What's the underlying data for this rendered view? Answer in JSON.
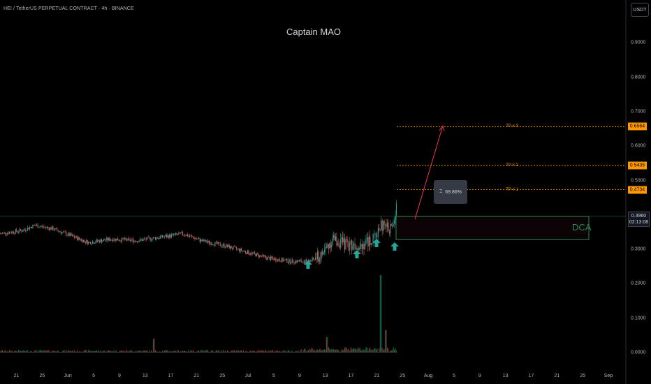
{
  "header": {
    "symbol": "HEI / TetherUS PERPETUAL CONTRACT · 4h · BINANCE",
    "author": "Captain MAO",
    "currency": "USDT"
  },
  "chart_data": {
    "type": "candlestick",
    "symbol": "HEI/USDT",
    "interval": "4h",
    "y_axis": {
      "ticks": [
        "0.9000",
        "0.8000",
        "0.7000",
        "0.6000",
        "0.5000",
        "0.4000",
        "0.3000",
        "0.2000",
        "0.1000",
        "0.0000"
      ],
      "ylim": [
        0,
        0.9
      ]
    },
    "x_axis": {
      "ticks": [
        "21",
        "25",
        "Jun",
        "5",
        "9",
        "13",
        "17",
        "21",
        "25",
        "Jul",
        "5",
        "9",
        "13",
        "17",
        "21",
        "25",
        "Aug",
        "5",
        "9",
        "13",
        "17",
        "21",
        "25",
        "Sep"
      ]
    },
    "price_path": [
      [
        "May 18",
        0.345
      ],
      [
        "May 22",
        0.355
      ],
      [
        "May 24",
        0.37
      ],
      [
        "May 27",
        0.36
      ],
      [
        "May 30",
        0.34
      ],
      [
        "Jun 2",
        0.32
      ],
      [
        "Jun 6",
        0.33
      ],
      [
        "Jun 10",
        0.325
      ],
      [
        "Jun 14",
        0.335
      ],
      [
        "Jun 18",
        0.345
      ],
      [
        "Jun 21",
        0.325
      ],
      [
        "Jun 25",
        0.31
      ],
      [
        "Jun 28",
        0.295
      ],
      [
        "Jul 2",
        0.275
      ],
      [
        "Jul 6",
        0.265
      ],
      [
        "Jul 9",
        0.265
      ],
      [
        "Jul 11",
        0.28
      ],
      [
        "Jul 13",
        0.33
      ],
      [
        "Jul 15",
        0.315
      ],
      [
        "Jul 18",
        0.315
      ],
      [
        "Jul 20",
        0.33
      ],
      [
        "Jul 21",
        0.37
      ],
      [
        "Jul 23",
        0.36
      ],
      [
        "Jul 24",
        0.445
      ],
      [
        "Jul 25",
        0.43
      ],
      [
        "Jul 26",
        0.35
      ],
      [
        "Jul 26",
        0.396
      ]
    ],
    "volume_path": [
      [
        "Jun 13",
        0.04
      ],
      [
        "Jul 12",
        0.045
      ],
      [
        "Jul 21",
        0.225
      ],
      [
        "Jul 22",
        0.065
      ],
      [
        "Jul 24",
        0.125
      ],
      [
        "Jul 26",
        0.005
      ]
    ],
    "current_price": "0.3960",
    "countdown": "02:13:08",
    "annotations": {
      "targets": [
        {
          "label": "TP # 3",
          "price": "0.6564"
        },
        {
          "label": "TP # 2",
          "price": "0.5435"
        },
        {
          "label": "TP # 1",
          "price": "0.4734"
        }
      ],
      "zone_label": "DCA",
      "measure_label": "69.86%",
      "buy_arrows": [
        "Jul 10",
        "Jul 19",
        "Jul 23",
        "Jul 26"
      ]
    }
  }
}
